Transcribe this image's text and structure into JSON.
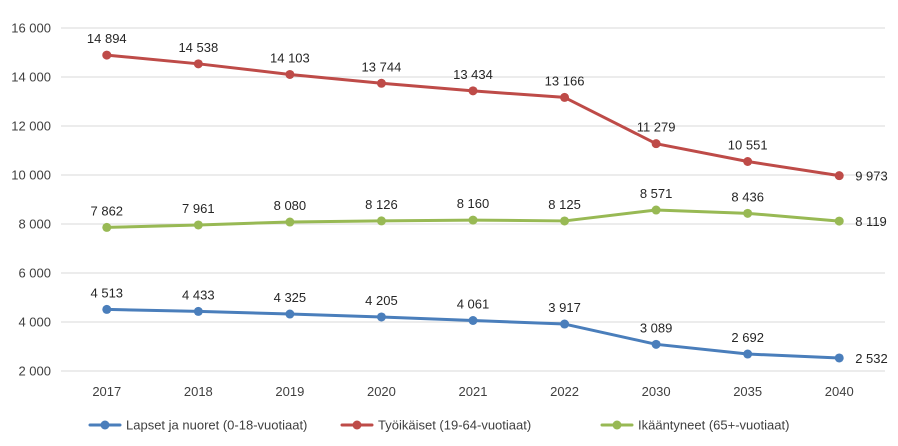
{
  "chart_data": {
    "type": "line",
    "title": "",
    "xlabel": "",
    "ylabel": "",
    "categories": [
      "2017",
      "2018",
      "2019",
      "2020",
      "2021",
      "2022",
      "2030",
      "2035",
      "2040"
    ],
    "ylim": [
      2000,
      16000
    ],
    "yticks": [
      2000,
      4000,
      6000,
      8000,
      10000,
      12000,
      14000,
      16000
    ],
    "ytick_labels": [
      "2 000",
      "4 000",
      "6 000",
      "8 000",
      "10 000",
      "12 000",
      "14 000",
      "16 000"
    ],
    "grid": "horizontal",
    "legend_position": "bottom",
    "series": [
      {
        "name": "Lapset ja nuoret (0-18-vuotiaat)",
        "color": "#4a7ebb",
        "values": [
          4513,
          4433,
          4325,
          4205,
          4061,
          3917,
          3089,
          2692,
          2532
        ],
        "labels": [
          "4 513",
          "4 433",
          "4 325",
          "4 205",
          "4 061",
          "3 917",
          "3 089",
          "2 692",
          "2 532"
        ]
      },
      {
        "name": "Työikäiset (19-64-vuotiaat)",
        "color": "#be4b48",
        "values": [
          14894,
          14538,
          14103,
          13744,
          13434,
          13166,
          11279,
          10551,
          9973
        ],
        "labels": [
          "14 894",
          "14 538",
          "14 103",
          "13 744",
          "13 434",
          "13 166",
          "11 279",
          "10 551",
          "9 973"
        ]
      },
      {
        "name": "Ikääntyneet (65+-vuotiaat)",
        "color": "#98b954",
        "values": [
          7862,
          7961,
          8080,
          8126,
          8160,
          8125,
          8571,
          8436,
          8119
        ],
        "labels": [
          "7 862",
          "7 961",
          "8 080",
          "8 126",
          "8 160",
          "8 125",
          "8 571",
          "8 436",
          "8 119"
        ]
      }
    ]
  }
}
